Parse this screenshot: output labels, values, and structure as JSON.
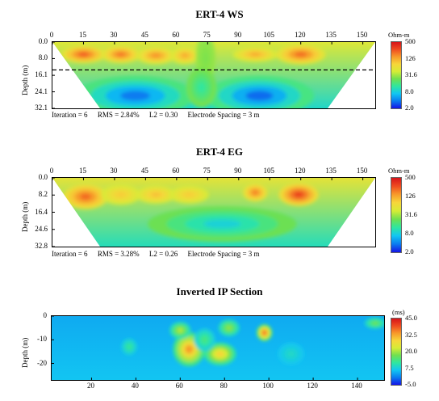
{
  "colors": {
    "scale": [
      "#1414e6",
      "#0a7cf0",
      "#12c6f2",
      "#2fe6a0",
      "#6fe050",
      "#d6ec36",
      "#f7d63a",
      "#f79a2a",
      "#ef4b20",
      "#d6141a"
    ],
    "mask_white": "#ffffff",
    "dashed_line": "#000000"
  },
  "chart_data": [
    {
      "type": "heatmap",
      "title": "ERT-4 WS",
      "xlabel": "",
      "ylabel": "Depth (m)",
      "x_ticks": [
        "0",
        "15",
        "30",
        "45",
        "60",
        "75",
        "90",
        "105",
        "120",
        "135",
        "150"
      ],
      "y_ticks": [
        "0.0",
        "8.0",
        "16.1",
        "24.1",
        "32.1"
      ],
      "xlim": [
        0,
        156
      ],
      "ylim": [
        0.0,
        32.1
      ],
      "colorbar": {
        "unit": "Ohm-m",
        "ticks": [
          "500",
          "126",
          "31.6",
          "8.0",
          "2.0"
        ],
        "scale": "log"
      },
      "stats": {
        "iteration": "Iteration = 6",
        "rms": "RMS = 2.84%",
        "l2": "L2 = 0.30",
        "spacing": "Electrode Spacing = 3 m"
      },
      "dashed_depth": 13.5,
      "section_outline": [
        [
          0,
          0
        ],
        [
          156,
          0
        ],
        [
          133,
          32.1
        ],
        [
          23,
          32.1
        ]
      ],
      "anomalies": [
        {
          "x": 15,
          "depth": 6,
          "sx": 9,
          "sy": 3.5,
          "level": 0.95
        },
        {
          "x": 33,
          "depth": 6,
          "sx": 8,
          "sy": 3.5,
          "level": 0.9
        },
        {
          "x": 50,
          "depth": 6.5,
          "sx": 8,
          "sy": 3.5,
          "level": 0.85
        },
        {
          "x": 64,
          "depth": 6.5,
          "sx": 6,
          "sy": 3.5,
          "level": 0.8
        },
        {
          "x": 98,
          "depth": 6,
          "sx": 9,
          "sy": 3,
          "level": 0.8
        },
        {
          "x": 120,
          "depth": 6,
          "sx": 10,
          "sy": 4,
          "level": 0.92
        },
        {
          "x": 74,
          "depth": 8,
          "sx": 4,
          "sy": 10,
          "level": 0.45
        },
        {
          "x": 40,
          "depth": 26,
          "sx": 24,
          "sy": 8,
          "level": 0.02
        },
        {
          "x": 100,
          "depth": 26,
          "sx": 22,
          "sy": 8,
          "level": 0.0
        },
        {
          "x": 72,
          "depth": 22,
          "sx": 6,
          "sy": 8,
          "level": 0.3
        }
      ]
    },
    {
      "type": "heatmap",
      "title": "ERT-4 EG",
      "xlabel": "",
      "ylabel": "Depth (m)",
      "x_ticks": [
        "0",
        "15",
        "30",
        "45",
        "60",
        "75",
        "90",
        "105",
        "120",
        "135",
        "150"
      ],
      "y_ticks": [
        "0.0",
        "8.2",
        "16.4",
        "24.6",
        "32.8"
      ],
      "xlim": [
        0,
        156
      ],
      "ylim": [
        0.0,
        32.8
      ],
      "colorbar": {
        "unit": "Ohm-m",
        "ticks": [
          "500",
          "126",
          "31.6",
          "8.0",
          "2.0"
        ],
        "scale": "log"
      },
      "stats": {
        "iteration": "Iteration = 6",
        "rms": "RMS = 3.28%",
        "l2": "L2 = 0.26",
        "spacing": "Electrode Spacing = 3 m"
      },
      "section_outline": [
        [
          0,
          0
        ],
        [
          156,
          0
        ],
        [
          133,
          32.8
        ],
        [
          23,
          32.8
        ]
      ],
      "anomalies": [
        {
          "x": 16,
          "depth": 9,
          "sx": 9,
          "sy": 5,
          "level": 0.92
        },
        {
          "x": 33,
          "depth": 8,
          "sx": 8,
          "sy": 4,
          "level": 0.72
        },
        {
          "x": 50,
          "depth": 8,
          "sx": 8,
          "sy": 3.5,
          "level": 0.75
        },
        {
          "x": 66,
          "depth": 8,
          "sx": 8,
          "sy": 3.5,
          "level": 0.72
        },
        {
          "x": 98,
          "depth": 7,
          "sx": 5,
          "sy": 3.5,
          "level": 0.88
        },
        {
          "x": 119,
          "depth": 8,
          "sx": 8,
          "sy": 4.5,
          "level": 1.0
        },
        {
          "x": 82,
          "depth": 22,
          "sx": 30,
          "sy": 7,
          "level": 0.2
        }
      ]
    },
    {
      "type": "heatmap",
      "title": "Inverted IP Section",
      "xlabel": "",
      "ylabel": "Depth (m)",
      "x_ticks": [
        "20",
        "40",
        "60",
        "80",
        "100",
        "120",
        "140"
      ],
      "y_ticks": [
        "0",
        "-10",
        "-20"
      ],
      "xlim": [
        2,
        152
      ],
      "ylim": [
        0,
        -27
      ],
      "colorbar": {
        "unit": "(ms)",
        "ticks": [
          "45.0",
          "32.5",
          "20.0",
          "7.5",
          "-5.0"
        ],
        "scale": "linear"
      },
      "anomalies": [
        {
          "x": 64,
          "depth": 14,
          "sx": 6,
          "sy": 6,
          "level": 0.9
        },
        {
          "x": 78,
          "depth": 16,
          "sx": 6,
          "sy": 4,
          "level": 0.78
        },
        {
          "x": 60,
          "depth": 6,
          "sx": 4,
          "sy": 3,
          "level": 0.6
        },
        {
          "x": 82,
          "depth": 5,
          "sx": 4,
          "sy": 3,
          "level": 0.55
        },
        {
          "x": 98,
          "depth": 7,
          "sx": 3,
          "sy": 3,
          "level": 1.0
        },
        {
          "x": 71,
          "depth": 10,
          "sx": 4,
          "sy": 4,
          "level": 0.42
        },
        {
          "x": 148,
          "depth": 3,
          "sx": 4,
          "sy": 2,
          "level": 0.5
        },
        {
          "x": 37,
          "depth": 13,
          "sx": 3,
          "sy": 3,
          "level": 0.38
        },
        {
          "x": 110,
          "depth": 16,
          "sx": 5,
          "sy": 4,
          "level": 0.3
        }
      ]
    }
  ]
}
